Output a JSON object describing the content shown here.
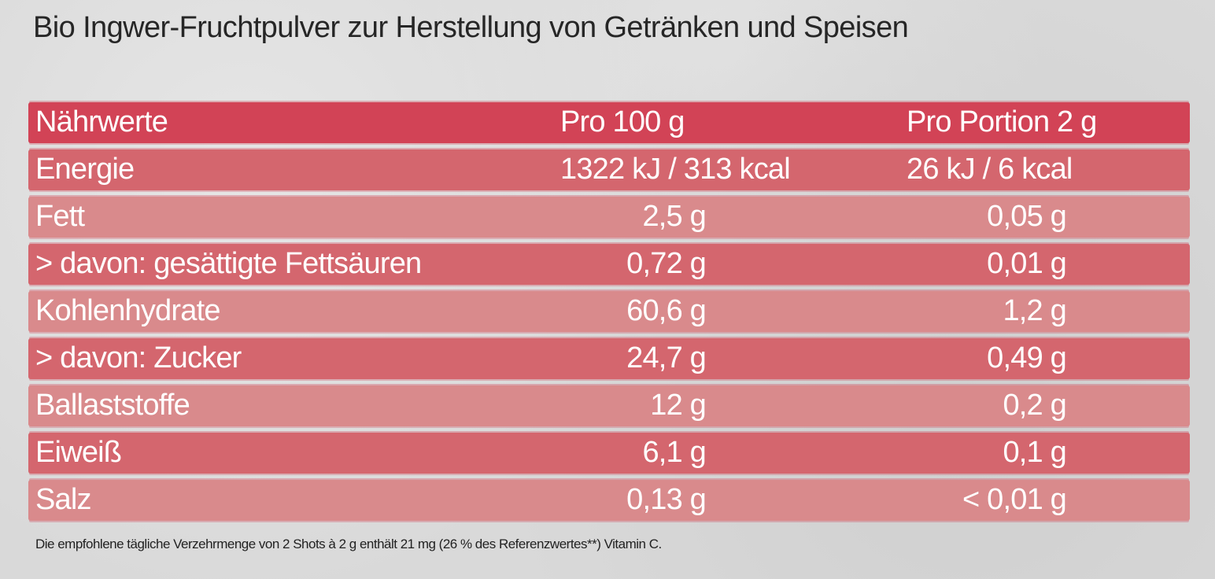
{
  "title": "Bio Ingwer-Fruchtpulver zur Herstellung von Getränken und Speisen",
  "colors": {
    "header": "#d24356",
    "row_dark": "#d4666e",
    "row_light": "#d98a8c",
    "text": "#ffffff"
  },
  "table": {
    "header": [
      "Nährwerte",
      "Pro 100 g",
      "Pro Portion 2 g"
    ],
    "rows": [
      [
        "Energie",
        "1322 kJ / 313 kcal",
        "26 kJ / 6 kcal"
      ],
      [
        "Fett",
        "2,5 g",
        "0,05 g"
      ],
      [
        "> davon: gesättigte Fettsäuren",
        "0,72 g",
        "0,01 g"
      ],
      [
        "Kohlenhydrate",
        "60,6 g",
        "1,2 g"
      ],
      [
        "> davon: Zucker",
        "24,7 g",
        "0,49 g"
      ],
      [
        "Ballaststoffe",
        "12 g",
        "0,2 g"
      ],
      [
        "Eiweiß",
        "6,1 g",
        "0,1 g"
      ],
      [
        "Salz",
        "0,13 g",
        "< 0,01 g"
      ]
    ]
  },
  "footnote": "Die empfohlene tägliche Verzehrmenge von 2 Shots à 2 g enthält 21 mg (26 % des Referenzwertes**) Vitamin C."
}
